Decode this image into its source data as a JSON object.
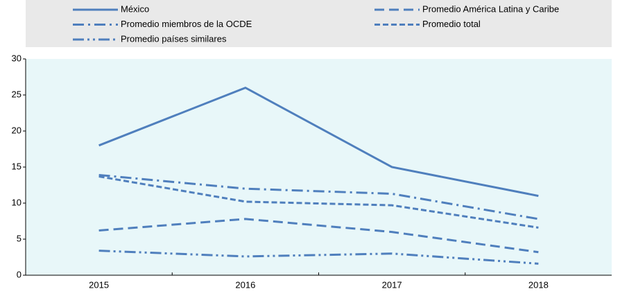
{
  "chart_data": {
    "type": "line",
    "categories": [
      "2015",
      "2016",
      "2017",
      "2018"
    ],
    "series": [
      {
        "name": "México",
        "color": "#4f7fbd",
        "dash": "solid",
        "values": [
          18,
          26,
          15,
          11
        ]
      },
      {
        "name": "Promedio América Latina y Caribe",
        "color": "#4f7fbd",
        "dash": "long-dash",
        "values": [
          6.2,
          7.8,
          6,
          3.2
        ]
      },
      {
        "name": "Promedio miembros de la OCDE",
        "color": "#4f7fbd",
        "dash": "dash-dot",
        "values": [
          13.9,
          12,
          11.3,
          7.8
        ]
      },
      {
        "name": "Promedio total",
        "color": "#4f7fbd",
        "dash": "short-dash",
        "values": [
          13.7,
          10.2,
          9.7,
          6.6
        ]
      },
      {
        "name": "Promedio países similares",
        "color": "#4f7fbd",
        "dash": "dash-dot-dot",
        "values": [
          3.4,
          2.6,
          3,
          1.6
        ]
      }
    ],
    "ylim": [
      0,
      30
    ],
    "yticks": [
      0,
      5,
      10,
      15,
      20,
      25,
      30
    ],
    "legend": "top"
  }
}
